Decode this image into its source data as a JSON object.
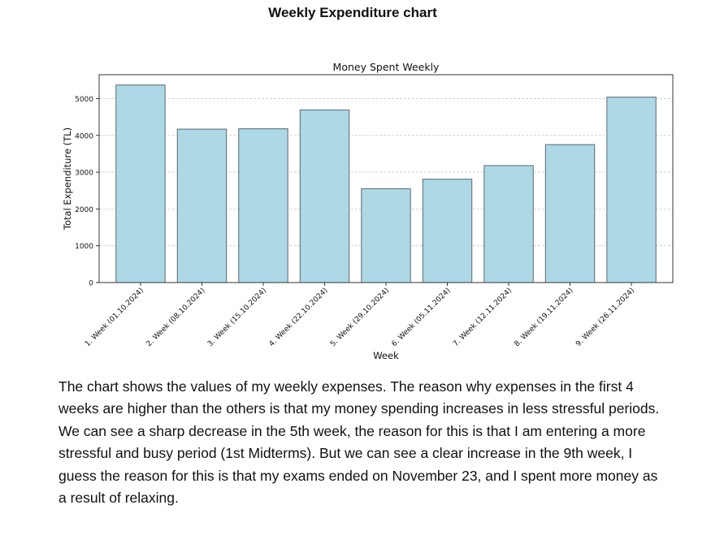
{
  "heading": "Weekly Expenditure chart",
  "description": "The chart shows the values of my weekly expenses. The reason why expenses in the first 4 weeks are higher than the others is that my money spending increases in less stressful periods. We can see a sharp decrease in the 5th week, the reason for this is that I am entering a more stressful and busy period (1st Midterms). But we can see a clear increase in the 9th week, I guess the reason for this is that my exams ended on November 23, and I spent more money as a result of relaxing.",
  "chart_data": {
    "type": "bar",
    "title": "Money Spent Weekly",
    "xlabel": "Week",
    "ylabel": "Total Expenditure (TL)",
    "categories": [
      "1. Week (01.10.2024)",
      "2. Week (08.10.2024)",
      "3. Week (15.10.2024)",
      "4. Week (22.10.2024)",
      "5. Week (29.10.2024)",
      "6. Week (05.11.2024)",
      "7. Week (12.11.2024)",
      "8. Week (19.11.2024)",
      "9. Week (26.11.2024)"
    ],
    "values": [
      5370,
      4170,
      4180,
      4690,
      2550,
      2810,
      3180,
      3750,
      5040
    ],
    "yticks": [
      0,
      1000,
      2000,
      3000,
      4000,
      5000
    ],
    "ylim": [
      0,
      5650
    ],
    "grid": "y-dashed",
    "bar_color": "#add8e6",
    "bar_edge_color": "#5a6870"
  }
}
